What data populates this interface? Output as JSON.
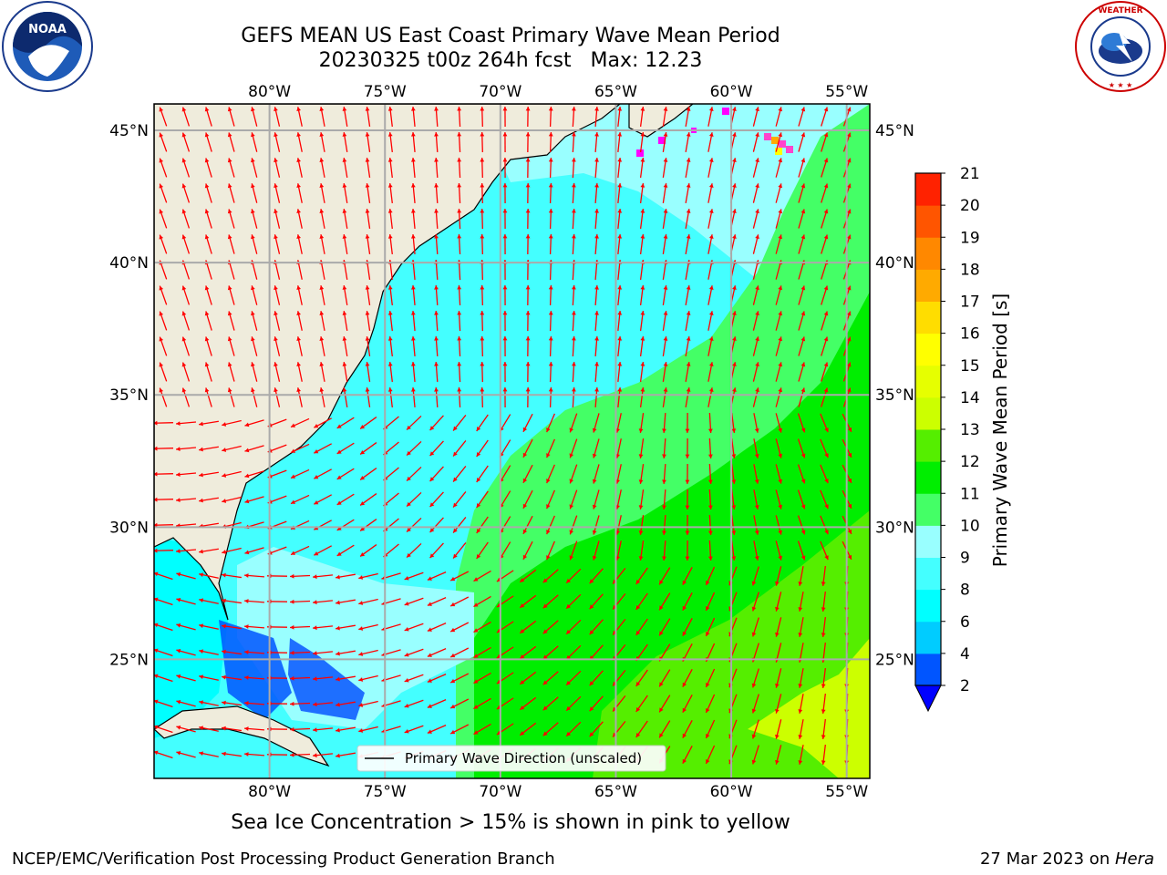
{
  "header": {
    "title_line1": "GEFS MEAN US East Coast Primary Wave Mean Period",
    "title_line2": "20230325 t00z 264h fcst   Max: 12.23"
  },
  "logos": {
    "left": "noaa-logo",
    "right": "national-weather-service-logo",
    "left_text": "NOAA",
    "right_text": "NATIONAL WEATHER SERVICE"
  },
  "map": {
    "lon_range": [
      -85,
      -54
    ],
    "lat_range": [
      20.5,
      46.0
    ],
    "lon_ticks": [
      "80°W",
      "75°W",
      "70°W",
      "65°W",
      "60°W",
      "55°W"
    ],
    "lat_ticks": [
      "45°N",
      "40°N",
      "35°N",
      "30°N",
      "25°N"
    ],
    "grid": true,
    "vector_color": "#ff0000",
    "land_color": "#efecdc",
    "legend_label": "Primary Wave Direction (unscaled)",
    "legend_position": "bottom-center"
  },
  "colorbar": {
    "label": "Primary Wave Mean Period [s]",
    "ticks": [
      "2",
      "4",
      "6",
      "8",
      "9",
      "10",
      "11",
      "12",
      "13",
      "14",
      "15",
      "16",
      "17",
      "18",
      "19",
      "20",
      "21"
    ],
    "colors": [
      "#0055ff",
      "#00ccff",
      "#00ffff",
      "#44ffff",
      "#99ffff",
      "#44ff66",
      "#00ee00",
      "#55ee00",
      "#ccff00",
      "#e6ff00",
      "#ffff00",
      "#ffdd00",
      "#ffaa00",
      "#ff8800",
      "#ff5500",
      "#ff2200"
    ],
    "extend": "min",
    "under_color": "#0000ff"
  },
  "note": "Sea Ice Concentration > 15% is shown in pink to yellow",
  "footer": {
    "left": "NCEP/EMC/Verification Post Processing Product Generation Branch",
    "right_date": "27 Mar 2023 on ",
    "right_machine": "Hera"
  }
}
